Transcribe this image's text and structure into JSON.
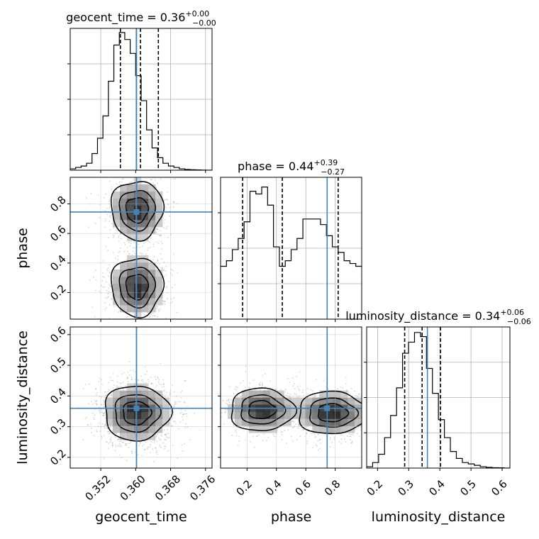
{
  "chart_data": {
    "type": "corner",
    "parameters": [
      {
        "name": "geocent_time",
        "title": "geocent_time = 0.36",
        "title_plus": "+0.00",
        "title_minus": "−0.00",
        "range": [
          0.345,
          0.3775
        ],
        "ticks": [
          0.352,
          0.36,
          0.368,
          0.376
        ],
        "tick_labels": [
          "0.352",
          "0.360",
          "0.368",
          "0.376"
        ],
        "injected": 0.3602,
        "quantiles": [
          0.3565,
          0.3611,
          0.3652
        ],
        "hist_ylim": [
          0,
          1.0
        ]
      },
      {
        "name": "phase",
        "title": "phase = 0.44",
        "title_plus": "+0.39",
        "title_minus": "−0.27",
        "range": [
          0.02,
          0.98
        ],
        "ticks": [
          0.2,
          0.4,
          0.6,
          0.8
        ],
        "tick_labels": [
          "0.2",
          "0.4",
          "0.6",
          "0.8"
        ],
        "injected": 0.745,
        "quantiles": [
          0.17,
          0.44,
          0.82
        ],
        "hist_ylim": [
          0,
          1.0
        ]
      },
      {
        "name": "luminosity_distance",
        "title": "luminosity_distance = 0.34",
        "title_plus": "+0.06",
        "title_minus": "−0.06",
        "range": [
          0.165,
          0.625
        ],
        "ticks": [
          0.2,
          0.3,
          0.4,
          0.5,
          0.6
        ],
        "tick_labels": [
          "0.2",
          "0.3",
          "0.4",
          "0.5",
          "0.6"
        ],
        "injected": 0.36,
        "quantiles": [
          0.287,
          0.343,
          0.402
        ],
        "hist_ylim": [
          0,
          1.0
        ]
      }
    ],
    "histograms": [
      {
        "param": "geocent_time",
        "edges_start": 0.345,
        "bin_width": 0.00125,
        "counts": [
          0.01,
          0.02,
          0.03,
          0.05,
          0.12,
          0.23,
          0.39,
          0.64,
          0.9,
          0.99,
          0.94,
          0.84,
          0.68,
          0.5,
          0.29,
          0.16,
          0.09,
          0.05,
          0.03,
          0.02,
          0.01,
          0.005,
          0.003,
          0.002,
          0.001,
          0.0
        ]
      },
      {
        "param": "phase",
        "edges_start": 0.02,
        "bin_width": 0.04,
        "counts": [
          0.38,
          0.42,
          0.5,
          0.58,
          0.7,
          0.92,
          0.9,
          0.95,
          0.82,
          0.52,
          0.38,
          0.42,
          0.5,
          0.58,
          0.72,
          0.72,
          0.72,
          0.68,
          0.6,
          0.52,
          0.48,
          0.42,
          0.4,
          0.38
        ]
      },
      {
        "param": "luminosity_distance",
        "edges_start": 0.165,
        "bin_width": 0.0192,
        "counts": [
          0.01,
          0.04,
          0.1,
          0.22,
          0.38,
          0.58,
          0.83,
          0.91,
          0.98,
          0.95,
          0.72,
          0.54,
          0.35,
          0.22,
          0.12,
          0.07,
          0.04,
          0.03,
          0.02,
          0.01,
          0.005,
          0.003,
          0.002,
          0.0
        ]
      }
    ],
    "pairs": [
      {
        "x": "geocent_time",
        "y": "phase",
        "modes": [
          {
            "mx": 0.3603,
            "my": 0.24,
            "sx": 0.003,
            "sy": 0.1
          },
          {
            "mx": 0.3603,
            "my": 0.76,
            "sx": 0.003,
            "sy": 0.1
          }
        ]
      },
      {
        "x": "geocent_time",
        "y": "luminosity_distance",
        "modes": [
          {
            "mx": 0.3602,
            "my": 0.345,
            "sx": 0.0038,
            "sy": 0.045
          }
        ]
      },
      {
        "x": "phase",
        "y": "luminosity_distance",
        "modes": [
          {
            "mx": 0.3,
            "my": 0.355,
            "sx": 0.11,
            "sy": 0.035
          },
          {
            "mx": 0.78,
            "my": 0.345,
            "sx": 0.12,
            "sy": 0.035
          }
        ]
      }
    ],
    "colors": {
      "truth": "#4682b4",
      "hist": "#000000",
      "quantile": "#000000",
      "grid": "#b0b0b0"
    },
    "grid": true
  }
}
